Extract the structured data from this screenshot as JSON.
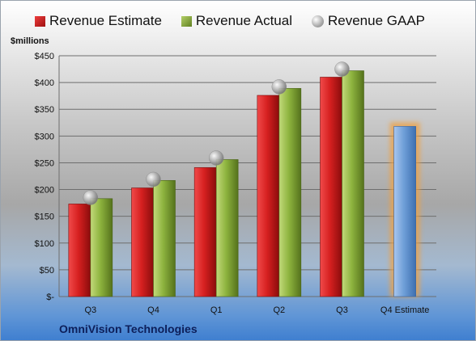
{
  "legend": {
    "estimate": "Revenue Estimate",
    "actual": "Revenue Actual",
    "gaap": "Revenue GAAP"
  },
  "unit_label": "$millions",
  "company": "OmniVision Technologies",
  "colors": {
    "estimate": "#c81e1e",
    "actual": "#8aab3c",
    "gaap": "#a9a9a9",
    "forecast": "#6f9fd8",
    "forecast_glow": "#f0a040"
  },
  "chart_data": {
    "type": "bar",
    "categories": [
      "Q3",
      "Q4",
      "Q1",
      "Q2",
      "Q3",
      "Q4 Estimate"
    ],
    "series": [
      {
        "name": "Revenue Estimate",
        "values": [
          173,
          203,
          241,
          376,
          410,
          null
        ]
      },
      {
        "name": "Revenue Actual",
        "values": [
          183,
          217,
          256,
          389,
          422,
          318
        ]
      },
      {
        "name": "Revenue GAAP",
        "values": [
          185,
          219,
          259,
          392,
          425,
          null
        ]
      }
    ],
    "yticks": [
      "$-",
      "$50",
      "$100",
      "$150",
      "$200",
      "$250",
      "$300",
      "$350",
      "$400",
      "$450"
    ],
    "ylim": [
      0,
      450
    ],
    "grid": true,
    "legend_position": "top"
  }
}
